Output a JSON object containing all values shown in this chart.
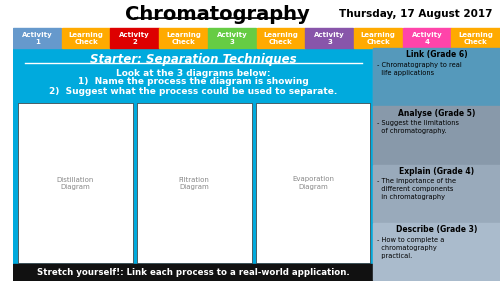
{
  "title": "Chromatography",
  "date": "Thursday, 17 August 2017",
  "bg_color": "#00AADD",
  "header_bg": "#FFFFFF",
  "activity_tabs": [
    {
      "label": "Activity\n1",
      "color": "#6699CC"
    },
    {
      "label": "Learning\nCheck",
      "color": "#FFAA00"
    },
    {
      "label": "Activity\n2",
      "color": "#DD0000"
    },
    {
      "label": "Learning\nCheck",
      "color": "#FFAA00"
    },
    {
      "label": "Activity\n3",
      "color": "#66CC44"
    },
    {
      "label": "Learning\nCheck",
      "color": "#FFAA00"
    },
    {
      "label": "Activity\n3",
      "color": "#8855AA"
    },
    {
      "label": "Learning\nCheck",
      "color": "#FFAA00"
    },
    {
      "label": "Activity\n4",
      "color": "#FF44AA"
    },
    {
      "label": "Learning\nCheck",
      "color": "#FFAA00"
    }
  ],
  "starter_title": "Starter: Separation Techniques",
  "instructions": [
    "Look at the 3 diagrams below:",
    "1)  Name the process the diagram is showing",
    "2)  Suggest what the process could be used to separate."
  ],
  "stretch": "Stretch yourself!: Link each process to a real-world application.",
  "right_panel": [
    {
      "grade": "Link (Grade 6)",
      "color": "#5599BB",
      "text": "- Chromatography to real\n  life applications"
    },
    {
      "grade": "Analyse (Grade 5)",
      "color": "#8899AA",
      "text": "- Suggest the limitations\n  of chromatography."
    },
    {
      "grade": "Explain (Grade 4)",
      "color": "#99AABB",
      "text": "- The importance of the\n  different components\n  in chromatography"
    },
    {
      "grade": "Describe (Grade 3)",
      "color": "#AABBCC",
      "text": "- How to complete a\n  chromatography\n  practical."
    }
  ]
}
